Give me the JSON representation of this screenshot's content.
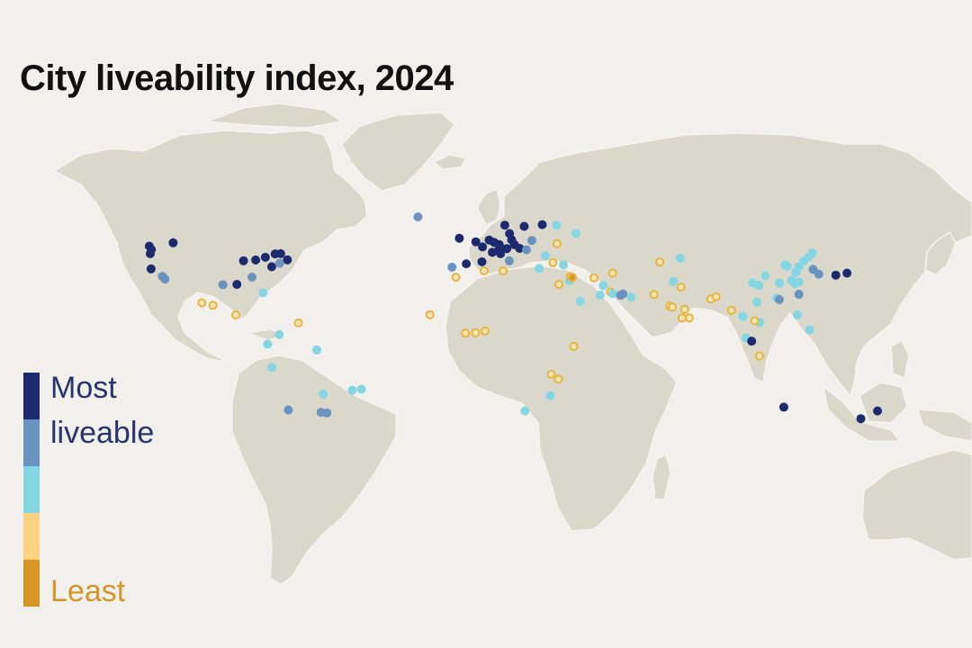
{
  "title": "City liveability index, 2024",
  "legend": {
    "top_label_line1": "Most",
    "top_label_line2": "liveable",
    "bottom_label": "Least",
    "colors": [
      "#1e2a6e",
      "#6c93bf",
      "#84d6e3",
      "#fdd382",
      "#d69527"
    ],
    "label_colors": {
      "most": "#26346f",
      "least": "#d69527"
    }
  },
  "map_colors": {
    "ocean": "#f1f0ec",
    "land": "#dad7cb",
    "border": "#f5f4ef"
  },
  "cities": [
    {
      "lon": -123.1,
      "lat": 49.3,
      "tier": 1
    },
    {
      "lon": -122.7,
      "lat": 45.5,
      "tier": 1
    },
    {
      "lon": -122.3,
      "lat": 47.6,
      "tier": 1
    },
    {
      "lon": -114.1,
      "lat": 51.0,
      "tier": 1
    },
    {
      "lon": -79.4,
      "lat": 43.7,
      "tier": 1
    },
    {
      "lon": -73.6,
      "lat": 45.5,
      "tier": 1
    },
    {
      "lon": -75.7,
      "lat": 45.4,
      "tier": 1
    },
    {
      "lon": -87.6,
      "lat": 41.9,
      "tier": 1
    },
    {
      "lon": -71.1,
      "lat": 42.4,
      "tier": 1
    },
    {
      "lon": -77.0,
      "lat": 38.9,
      "tier": 1
    },
    {
      "lon": -74.0,
      "lat": 40.7,
      "tier": 2
    },
    {
      "lon": -83.0,
      "lat": 42.3,
      "tier": 1
    },
    {
      "lon": -84.4,
      "lat": 33.7,
      "tier": 2
    },
    {
      "lon": -80.2,
      "lat": 25.8,
      "tier": 3
    },
    {
      "lon": -122.4,
      "lat": 37.8,
      "tier": 1
    },
    {
      "lon": -118.2,
      "lat": 34.1,
      "tier": 2
    },
    {
      "lon": -117.2,
      "lat": 32.7,
      "tier": 2
    },
    {
      "lon": -95.4,
      "lat": 29.8,
      "tier": 2
    },
    {
      "lon": -90.1,
      "lat": 30.0,
      "tier": 1
    },
    {
      "lon": -99.1,
      "lat": 19.4,
      "tier": 4
    },
    {
      "lon": -103.3,
      "lat": 20.7,
      "tier": 4
    },
    {
      "lon": -90.5,
      "lat": 14.6,
      "tier": 4
    },
    {
      "lon": -66.9,
      "lat": 10.5,
      "tier": 4
    },
    {
      "lon": -74.1,
      "lat": 4.7,
      "tier": 3
    },
    {
      "lon": -78.5,
      "lat": -0.2,
      "tier": 3
    },
    {
      "lon": -77.0,
      "lat": -12.0,
      "tier": 3
    },
    {
      "lon": -60.0,
      "lat": -3.1,
      "tier": 3
    },
    {
      "lon": -70.7,
      "lat": -33.4,
      "tier": 2
    },
    {
      "lon": -58.4,
      "lat": -34.6,
      "tier": 2
    },
    {
      "lon": -56.2,
      "lat": -34.9,
      "tier": 2
    },
    {
      "lon": -46.6,
      "lat": -23.5,
      "tier": 3
    },
    {
      "lon": -43.2,
      "lat": -22.9,
      "tier": 3
    },
    {
      "lon": -57.6,
      "lat": -25.3,
      "tier": 3
    },
    {
      "lon": -21.9,
      "lat": 64.1,
      "tier": 2
    },
    {
      "lon": -6.3,
      "lat": 53.3,
      "tier": 1
    },
    {
      "lon": -0.1,
      "lat": 51.5,
      "tier": 1
    },
    {
      "lon": 2.4,
      "lat": 48.9,
      "tier": 1
    },
    {
      "lon": 4.9,
      "lat": 52.4,
      "tier": 1
    },
    {
      "lon": 12.6,
      "lat": 55.7,
      "tier": 1
    },
    {
      "lon": 10.8,
      "lat": 59.9,
      "tier": 1
    },
    {
      "lon": 18.1,
      "lat": 59.3,
      "tier": 1
    },
    {
      "lon": 24.9,
      "lat": 60.2,
      "tier": 1
    },
    {
      "lon": 13.4,
      "lat": 52.5,
      "tier": 1
    },
    {
      "lon": 8.7,
      "lat": 50.1,
      "tier": 1
    },
    {
      "lon": 6.8,
      "lat": 51.2,
      "tier": 1
    },
    {
      "lon": 11.6,
      "lat": 48.1,
      "tier": 1
    },
    {
      "lon": 16.4,
      "lat": 48.2,
      "tier": 1
    },
    {
      "lon": 8.5,
      "lat": 47.4,
      "tier": 1
    },
    {
      "lon": 6.1,
      "lat": 46.2,
      "tier": 1
    },
    {
      "lon": 14.4,
      "lat": 50.1,
      "tier": 1
    },
    {
      "lon": 9.2,
      "lat": 45.5,
      "tier": 1
    },
    {
      "lon": -3.7,
      "lat": 40.4,
      "tier": 1
    },
    {
      "lon": 2.2,
      "lat": 41.4,
      "tier": 1
    },
    {
      "lon": -9.1,
      "lat": 38.7,
      "tier": 2
    },
    {
      "lon": 12.5,
      "lat": 41.9,
      "tier": 2
    },
    {
      "lon": 21.0,
      "lat": 52.2,
      "tier": 2
    },
    {
      "lon": 19.0,
      "lat": 47.5,
      "tier": 2
    },
    {
      "lon": 23.7,
      "lat": 38.0,
      "tier": 3
    },
    {
      "lon": 26.1,
      "lat": 44.4,
      "tier": 3
    },
    {
      "lon": 30.5,
      "lat": 50.5,
      "tier": 4
    },
    {
      "lon": 37.6,
      "lat": 55.8,
      "tier": 3
    },
    {
      "lon": 30.3,
      "lat": 59.9,
      "tier": 3
    },
    {
      "lon": 28.9,
      "lat": 41.0,
      "tier": 4
    },
    {
      "lon": 32.9,
      "lat": 39.9,
      "tier": 3
    },
    {
      "lon": -7.6,
      "lat": 33.6,
      "tier": 4
    },
    {
      "lon": 3.0,
      "lat": 36.8,
      "tier": 4
    },
    {
      "lon": 10.2,
      "lat": 36.8,
      "tier": 4
    },
    {
      "lon": 31.2,
      "lat": 30.0,
      "tier": 4
    },
    {
      "lon": 35.2,
      "lat": 31.8,
      "tier": 3
    },
    {
      "lon": 35.5,
      "lat": 33.9,
      "tier": 4
    },
    {
      "lon": 36.3,
      "lat": 33.5,
      "tier": 5
    },
    {
      "lon": 44.4,
      "lat": 33.3,
      "tier": 4
    },
    {
      "lon": 51.4,
      "lat": 35.7,
      "tier": 4
    },
    {
      "lon": 69.2,
      "lat": 41.3,
      "tier": 4
    },
    {
      "lon": 76.9,
      "lat": 43.2,
      "tier": 3
    },
    {
      "lon": 47.9,
      "lat": 29.4,
      "tier": 3
    },
    {
      "lon": 50.6,
      "lat": 26.2,
      "tier": 4
    },
    {
      "lon": 51.5,
      "lat": 25.3,
      "tier": 3
    },
    {
      "lon": 54.4,
      "lat": 24.5,
      "tier": 2
    },
    {
      "lon": 55.3,
      "lat": 25.2,
      "tier": 2
    },
    {
      "lon": 58.4,
      "lat": 23.6,
      "tier": 3
    },
    {
      "lon": 46.7,
      "lat": 24.7,
      "tier": 3
    },
    {
      "lon": 39.2,
      "lat": 21.5,
      "tier": 3
    },
    {
      "lon": 67.0,
      "lat": 24.9,
      "tier": 4
    },
    {
      "lon": 74.3,
      "lat": 31.5,
      "tier": 3
    },
    {
      "lon": 77.2,
      "lat": 28.6,
      "tier": 4
    },
    {
      "lon": 72.9,
      "lat": 19.1,
      "tier": 4
    },
    {
      "lon": 73.9,
      "lat": 18.5,
      "tier": 4
    },
    {
      "lon": 77.6,
      "lat": 13.0,
      "tier": 4
    },
    {
      "lon": 80.3,
      "lat": 13.1,
      "tier": 4
    },
    {
      "lon": 78.5,
      "lat": 17.4,
      "tier": 4
    },
    {
      "lon": 88.4,
      "lat": 22.6,
      "tier": 4
    },
    {
      "lon": 90.4,
      "lat": 23.8,
      "tier": 4
    },
    {
      "lon": -17.4,
      "lat": 14.7,
      "tier": 4
    },
    {
      "lon": -4.0,
      "lat": 5.3,
      "tier": 4
    },
    {
      "lon": 3.4,
      "lat": 6.5,
      "tier": 4
    },
    {
      "lon": -0.2,
      "lat": 5.6,
      "tier": 4
    },
    {
      "lon": 36.8,
      "lat": -1.3,
      "tier": 4
    },
    {
      "lon": 28.3,
      "lat": -15.4,
      "tier": 4
    },
    {
      "lon": 31.0,
      "lat": -17.8,
      "tier": 4
    },
    {
      "lon": 28.0,
      "lat": -26.2,
      "tier": 3
    },
    {
      "lon": 18.4,
      "lat": -33.9,
      "tier": 3
    },
    {
      "lon": 116.4,
      "lat": 39.9,
      "tier": 3
    },
    {
      "lon": 117.2,
      "lat": 39.1,
      "tier": 3
    },
    {
      "lon": 121.5,
      "lat": 31.2,
      "tier": 3
    },
    {
      "lon": 120.2,
      "lat": 30.3,
      "tier": 3
    },
    {
      "lon": 118.8,
      "lat": 32.1,
      "tier": 3
    },
    {
      "lon": 113.3,
      "lat": 23.1,
      "tier": 3
    },
    {
      "lon": 114.1,
      "lat": 22.5,
      "tier": 3
    },
    {
      "lon": 114.2,
      "lat": 22.3,
      "tier": 2
    },
    {
      "lon": 104.1,
      "lat": 30.7,
      "tier": 3
    },
    {
      "lon": 106.5,
      "lat": 29.6,
      "tier": 3
    },
    {
      "lon": 108.9,
      "lat": 34.3,
      "tier": 3
    },
    {
      "lon": 114.3,
      "lat": 30.6,
      "tier": 3
    },
    {
      "lon": 123.4,
      "lat": 41.8,
      "tier": 3
    },
    {
      "lon": 121.6,
      "lat": 38.9,
      "tier": 3
    },
    {
      "lon": 126.6,
      "lat": 45.8,
      "tier": 3
    },
    {
      "lon": 125.3,
      "lat": 43.9,
      "tier": 3
    },
    {
      "lon": 120.4,
      "lat": 36.1,
      "tier": 3
    },
    {
      "lon": 126.9,
      "lat": 37.6,
      "tier": 2
    },
    {
      "lon": 129.1,
      "lat": 35.2,
      "tier": 2
    },
    {
      "lon": 139.7,
      "lat": 35.7,
      "tier": 1
    },
    {
      "lon": 135.5,
      "lat": 34.7,
      "tier": 1
    },
    {
      "lon": 121.6,
      "lat": 25.0,
      "tier": 2
    },
    {
      "lon": 105.8,
      "lat": 21.0,
      "tier": 3
    },
    {
      "lon": 106.7,
      "lat": 10.8,
      "tier": 3
    },
    {
      "lon": 100.5,
      "lat": 13.8,
      "tier": 3
    },
    {
      "lon": 96.2,
      "lat": 16.9,
      "tier": 4
    },
    {
      "lon": 104.9,
      "lat": 11.6,
      "tier": 4
    },
    {
      "lon": 101.7,
      "lat": 3.1,
      "tier": 3
    },
    {
      "lon": 103.8,
      "lat": 1.3,
      "tier": 1
    },
    {
      "lon": 106.8,
      "lat": -6.2,
      "tier": 4
    },
    {
      "lon": 121.0,
      "lat": 14.6,
      "tier": 3
    },
    {
      "lon": 125.6,
      "lat": 7.1,
      "tier": 3
    },
    {
      "lon": 115.9,
      "lat": -32.0,
      "tier": 1
    },
    {
      "lon": 144.9,
      "lat": -37.8,
      "tier": 1
    },
    {
      "lon": 151.2,
      "lat": -33.9,
      "tier": 1
    }
  ]
}
